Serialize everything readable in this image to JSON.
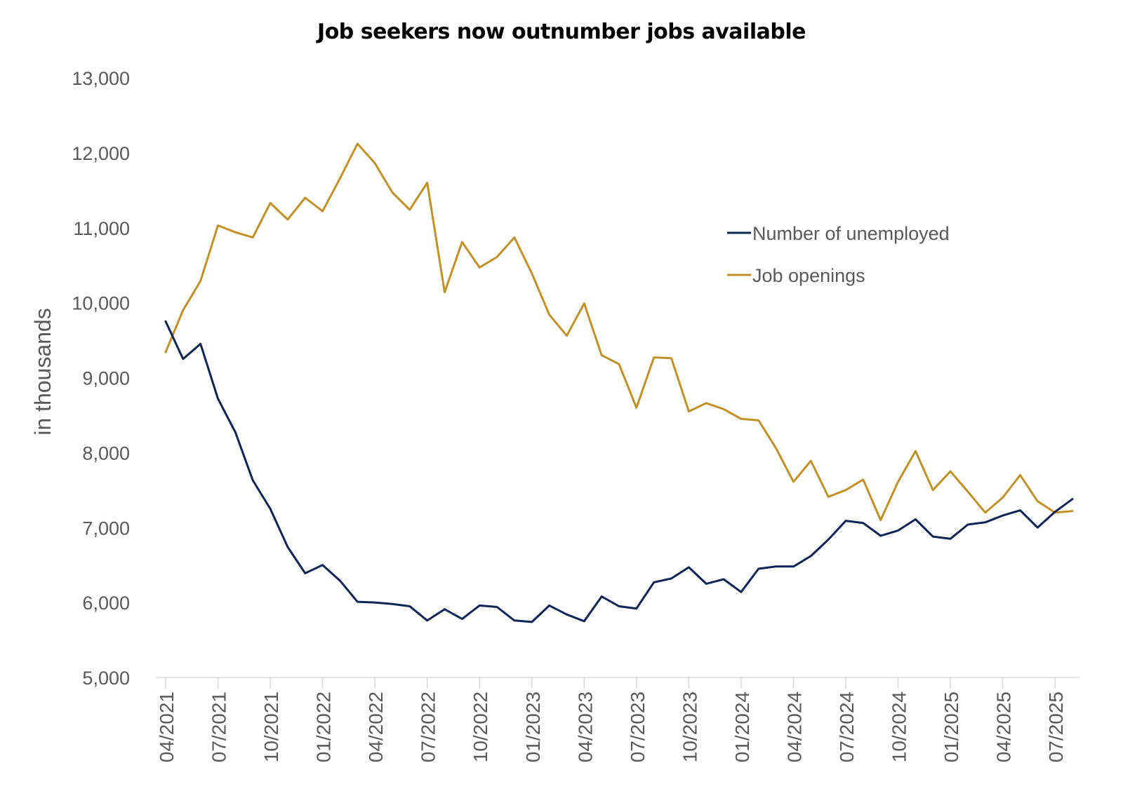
{
  "chart_data": {
    "type": "line",
    "title": "Job seekers now outnumber jobs available",
    "xlabel": "",
    "ylabel": "in thousands",
    "ylim": [
      5000,
      13000
    ],
    "yticks": [
      "5,000",
      "6,000",
      "7,000",
      "8,000",
      "9,000",
      "10,000",
      "11,000",
      "12,000",
      "13,000"
    ],
    "x_tick_labels": [
      "04/2021",
      "07/2021",
      "10/2021",
      "01/2022",
      "04/2022",
      "07/2022",
      "10/2022",
      "01/2023",
      "04/2023",
      "07/2023",
      "10/2023",
      "01/2024",
      "04/2024",
      "07/2024",
      "10/2024",
      "01/2025",
      "04/2025",
      "07/2025"
    ],
    "x": [
      "04/2021",
      "05/2021",
      "06/2021",
      "07/2021",
      "08/2021",
      "09/2021",
      "10/2021",
      "11/2021",
      "12/2021",
      "01/2022",
      "02/2022",
      "03/2022",
      "04/2022",
      "05/2022",
      "06/2022",
      "07/2022",
      "08/2022",
      "09/2022",
      "10/2022",
      "11/2022",
      "12/2022",
      "01/2023",
      "02/2023",
      "03/2023",
      "04/2023",
      "05/2023",
      "06/2023",
      "07/2023",
      "08/2023",
      "09/2023",
      "10/2023",
      "11/2023",
      "12/2023",
      "01/2024",
      "02/2024",
      "03/2024",
      "04/2024",
      "05/2024",
      "06/2024",
      "07/2024",
      "08/2024",
      "09/2024",
      "10/2024",
      "11/2024",
      "12/2024",
      "01/2025",
      "02/2025",
      "03/2025",
      "04/2025",
      "05/2025",
      "06/2025",
      "07/2025",
      "08/2025"
    ],
    "series": [
      {
        "name": "Number of unemployed",
        "color": "#0d2454",
        "values": [
          9750,
          9250,
          9450,
          8720,
          8270,
          7630,
          7250,
          6740,
          6390,
          6500,
          6290,
          6010,
          6000,
          5980,
          5950,
          5760,
          5910,
          5780,
          5960,
          5940,
          5760,
          5740,
          5960,
          5840,
          5750,
          6080,
          5950,
          5920,
          6270,
          6320,
          6470,
          6250,
          6310,
          6140,
          6450,
          6480,
          6480,
          6620,
          6840,
          7090,
          7060,
          6890,
          6960,
          7110,
          6880,
          6850,
          7040,
          7070,
          7160,
          7230,
          7000,
          7210,
          7380
        ]
      },
      {
        "name": "Job openings",
        "color": "#bf9127",
        "values": [
          9340,
          9900,
          10290,
          11030,
          10940,
          10870,
          11330,
          11110,
          11400,
          11220,
          11660,
          12120,
          11860,
          11470,
          11240,
          11600,
          10140,
          10810,
          10470,
          10610,
          10870,
          10390,
          9840,
          9560,
          9990,
          9300,
          9180,
          8600,
          9270,
          9260,
          8550,
          8660,
          8580,
          8450,
          8430,
          8060,
          7610,
          7890,
          7410,
          7500,
          7640,
          7100,
          7610,
          8020,
          7500,
          7750,
          7480,
          7200,
          7400,
          7700,
          7350,
          7200,
          7220
        ]
      }
    ],
    "grid": false,
    "legend_position": "top-right"
  }
}
